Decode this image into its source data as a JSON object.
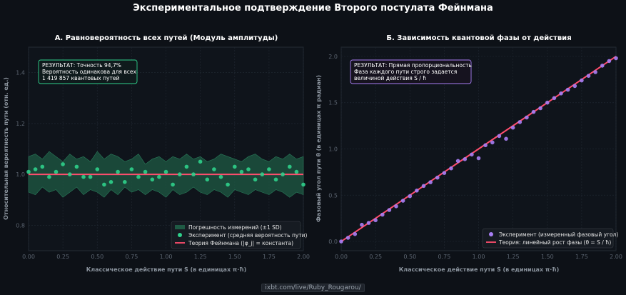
{
  "title": "Экспериментальное подтверждение Второго постулата Фейнмана",
  "watermark": "ixbt.com/live/Ruby_Rougarou/",
  "colors": {
    "background": "#0d1117",
    "panel": "#0f141b",
    "grid": "#1f2630",
    "green": "#2fd08b",
    "band": "#1f5a44",
    "red": "#ff4d6d",
    "purple": "#a87ef5"
  },
  "chart_data": [
    {
      "type": "scatter",
      "title": "А. Равновероятность всех путей (Модуль амплитуды)",
      "xlabel": "Классическое действие пути S (в единицах π·ħ)",
      "ylabel": "Относительная вероятность пути (отн. ед.)",
      "xlim": [
        0,
        2
      ],
      "ylim": [
        0.7,
        1.5
      ],
      "xticks": [
        "0.00",
        "0.25",
        "0.50",
        "0.75",
        "1.00",
        "1.25",
        "1.50",
        "1.75",
        "2.00"
      ],
      "yticks": [
        "0.8",
        "1.0",
        "1.2",
        "1.4"
      ],
      "grid": true,
      "legend_position": "bottom-right",
      "annotation": [
        "РЕЗУЛЬТАТ: Точность 94,7%",
        "Вероятность одинакова для всех",
        "1 419 857 квантовых путей"
      ],
      "series": [
        {
          "name": "Погрешность измерений (±1 SD)",
          "kind": "band",
          "upper": [
            1.07,
            1.08,
            1.06,
            1.09,
            1.07,
            1.05,
            1.08,
            1.06,
            1.07,
            1.05,
            1.09,
            1.06,
            1.08,
            1.07,
            1.05,
            1.06,
            1.08,
            1.04,
            1.06,
            1.07,
            1.05,
            1.07,
            1.06,
            1.08,
            1.06,
            1.07,
            1.05,
            1.06,
            1.08,
            1.07,
            1.06,
            1.05,
            1.07,
            1.08,
            1.06,
            1.05,
            1.07,
            1.06,
            1.08,
            1.06,
            1.07
          ],
          "lower": [
            0.93,
            0.92,
            0.95,
            0.93,
            0.94,
            0.91,
            0.93,
            0.95,
            0.92,
            0.94,
            0.93,
            0.91,
            0.94,
            0.92,
            0.95,
            0.93,
            0.94,
            0.92,
            0.94,
            0.93,
            0.91,
            0.94,
            0.92,
            0.93,
            0.95,
            0.93,
            0.92,
            0.94,
            0.93,
            0.91,
            0.94,
            0.93,
            0.92,
            0.94,
            0.93,
            0.92,
            0.94,
            0.93,
            0.91,
            0.93,
            0.92
          ]
        },
        {
          "name": "Эксперимент (средняя вероятность пути)",
          "kind": "points",
          "x": [
            0.0,
            0.05,
            0.1,
            0.15,
            0.2,
            0.25,
            0.3,
            0.35,
            0.4,
            0.45,
            0.5,
            0.55,
            0.6,
            0.65,
            0.7,
            0.75,
            0.8,
            0.85,
            0.9,
            0.95,
            1.0,
            1.05,
            1.1,
            1.15,
            1.2,
            1.25,
            1.3,
            1.35,
            1.4,
            1.45,
            1.5,
            1.55,
            1.6,
            1.65,
            1.7,
            1.75,
            1.8,
            1.85,
            1.9,
            1.95,
            2.0
          ],
          "y": [
            1.01,
            1.02,
            1.03,
            0.99,
            1.01,
            1.04,
            1.0,
            1.03,
            0.99,
            0.99,
            1.02,
            0.96,
            0.97,
            1.01,
            0.97,
            1.02,
            0.99,
            1.01,
            0.98,
            0.99,
            1.01,
            0.96,
            1.0,
            1.03,
            1.0,
            1.05,
            0.98,
            1.02,
            0.99,
            0.96,
            1.03,
            1.01,
            1.02,
            0.98,
            1.0,
            1.02,
            0.98,
            1.0,
            1.03,
            1.01,
            0.96
          ]
        },
        {
          "name": "Теория Фейнмана (|φ_j| = константа)",
          "kind": "line",
          "x": [
            0,
            2
          ],
          "y": [
            1.0,
            1.0
          ]
        }
      ]
    },
    {
      "type": "scatter",
      "title": "Б. Зависимость квантовой фазы от действия",
      "xlabel": "Классическое действие пути S (в единицах π·ħ)",
      "ylabel": "Фазовый угол пути θ (в единицах π радиан)",
      "xlim": [
        0,
        2
      ],
      "ylim": [
        -0.1,
        2.1
      ],
      "xticks": [
        "0.00",
        "0.25",
        "0.50",
        "0.75",
        "1.00",
        "1.25",
        "1.50",
        "1.75",
        "2.00"
      ],
      "yticks": [
        "0.0",
        "0.5",
        "1.0",
        "1.5",
        "2.0"
      ],
      "grid": true,
      "legend_position": "bottom-right",
      "annotation": [
        "РЕЗУЛЬТАТ: Прямая пропорциональность",
        "Фаза каждого пути строго задается",
        "величиной действия S / ħ"
      ],
      "series": [
        {
          "name": "Эксперимент (измеренный фазовый угол)",
          "kind": "points",
          "x": [
            0.0,
            0.05,
            0.1,
            0.15,
            0.2,
            0.25,
            0.3,
            0.35,
            0.4,
            0.45,
            0.5,
            0.55,
            0.6,
            0.65,
            0.7,
            0.75,
            0.8,
            0.85,
            0.9,
            0.95,
            1.0,
            1.05,
            1.1,
            1.15,
            1.2,
            1.25,
            1.3,
            1.35,
            1.4,
            1.45,
            1.5,
            1.55,
            1.6,
            1.65,
            1.7,
            1.75,
            1.8,
            1.85,
            1.9,
            1.95,
            2.0
          ],
          "y": [
            0.0,
            0.04,
            0.08,
            0.18,
            0.2,
            0.23,
            0.29,
            0.34,
            0.38,
            0.44,
            0.49,
            0.55,
            0.6,
            0.64,
            0.69,
            0.74,
            0.79,
            0.87,
            0.89,
            0.94,
            0.9,
            1.04,
            1.07,
            1.14,
            1.11,
            1.23,
            1.29,
            1.34,
            1.4,
            1.44,
            1.5,
            1.55,
            1.6,
            1.64,
            1.68,
            1.74,
            1.79,
            1.83,
            1.9,
            1.95,
            1.98
          ]
        },
        {
          "name": "Теория: линейный рост фазы (θ = S / ħ)",
          "kind": "line",
          "x": [
            0,
            2
          ],
          "y": [
            0.0,
            2.0
          ]
        }
      ]
    }
  ]
}
